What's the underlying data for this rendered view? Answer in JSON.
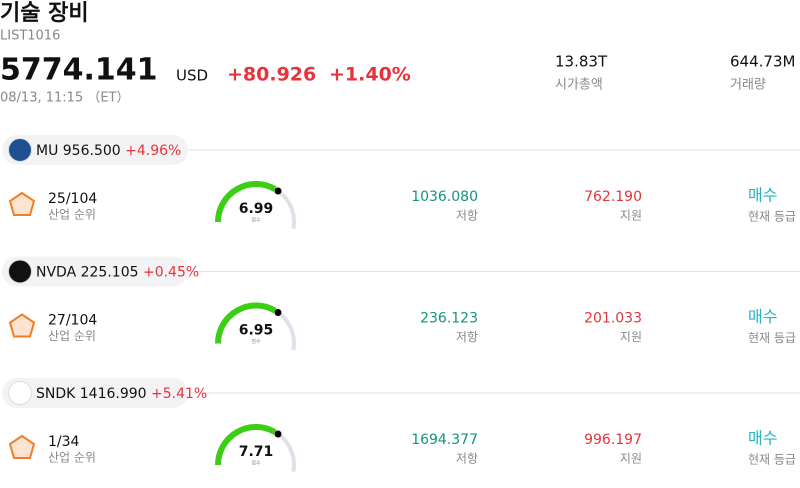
{
  "header": {
    "title": "기술 장비",
    "code": "LIST1016",
    "price": "5774.141",
    "currency": "USD",
    "change": "+80.926",
    "change_pct": "+1.40%",
    "time": "08/13, 11:15 （ET）",
    "market_cap": {
      "value": "13.83T",
      "label": "시가총액"
    },
    "volume": {
      "value": "644.73M",
      "label": "거래량"
    }
  },
  "stocks": [
    {
      "ticker": "MU",
      "price": "956.500",
      "change": "+4.96%",
      "logo_color": "#1d4f91",
      "rank": "25/104",
      "rank_label": "산업 순위",
      "score": "6.99",
      "score_label": "점수",
      "resistance": "1036.080",
      "resistance_label": "저항",
      "support": "762.190",
      "support_label": "지원",
      "rating": "매수",
      "rating_label": "현재 등급"
    },
    {
      "ticker": "NVDA",
      "price": "225.105",
      "change": "+0.45%",
      "logo_color": "#111111",
      "rank": "27/104",
      "rank_label": "산업 순위",
      "score": "6.95",
      "score_label": "점수",
      "resistance": "236.123",
      "resistance_label": "저항",
      "support": "201.033",
      "support_label": "지원",
      "rating": "매수",
      "rating_label": "현재 등급"
    },
    {
      "ticker": "SNDK",
      "price": "1416.990",
      "change": "+5.41%",
      "logo_color": "#ffffff",
      "rank": "1/34",
      "rank_label": "산업 순위",
      "score": "7.71",
      "score_label": "점수",
      "resistance": "1694.377",
      "resistance_label": "저항",
      "support": "996.197",
      "support_label": "지원",
      "rating": "매수",
      "rating_label": "현재 등급"
    }
  ]
}
